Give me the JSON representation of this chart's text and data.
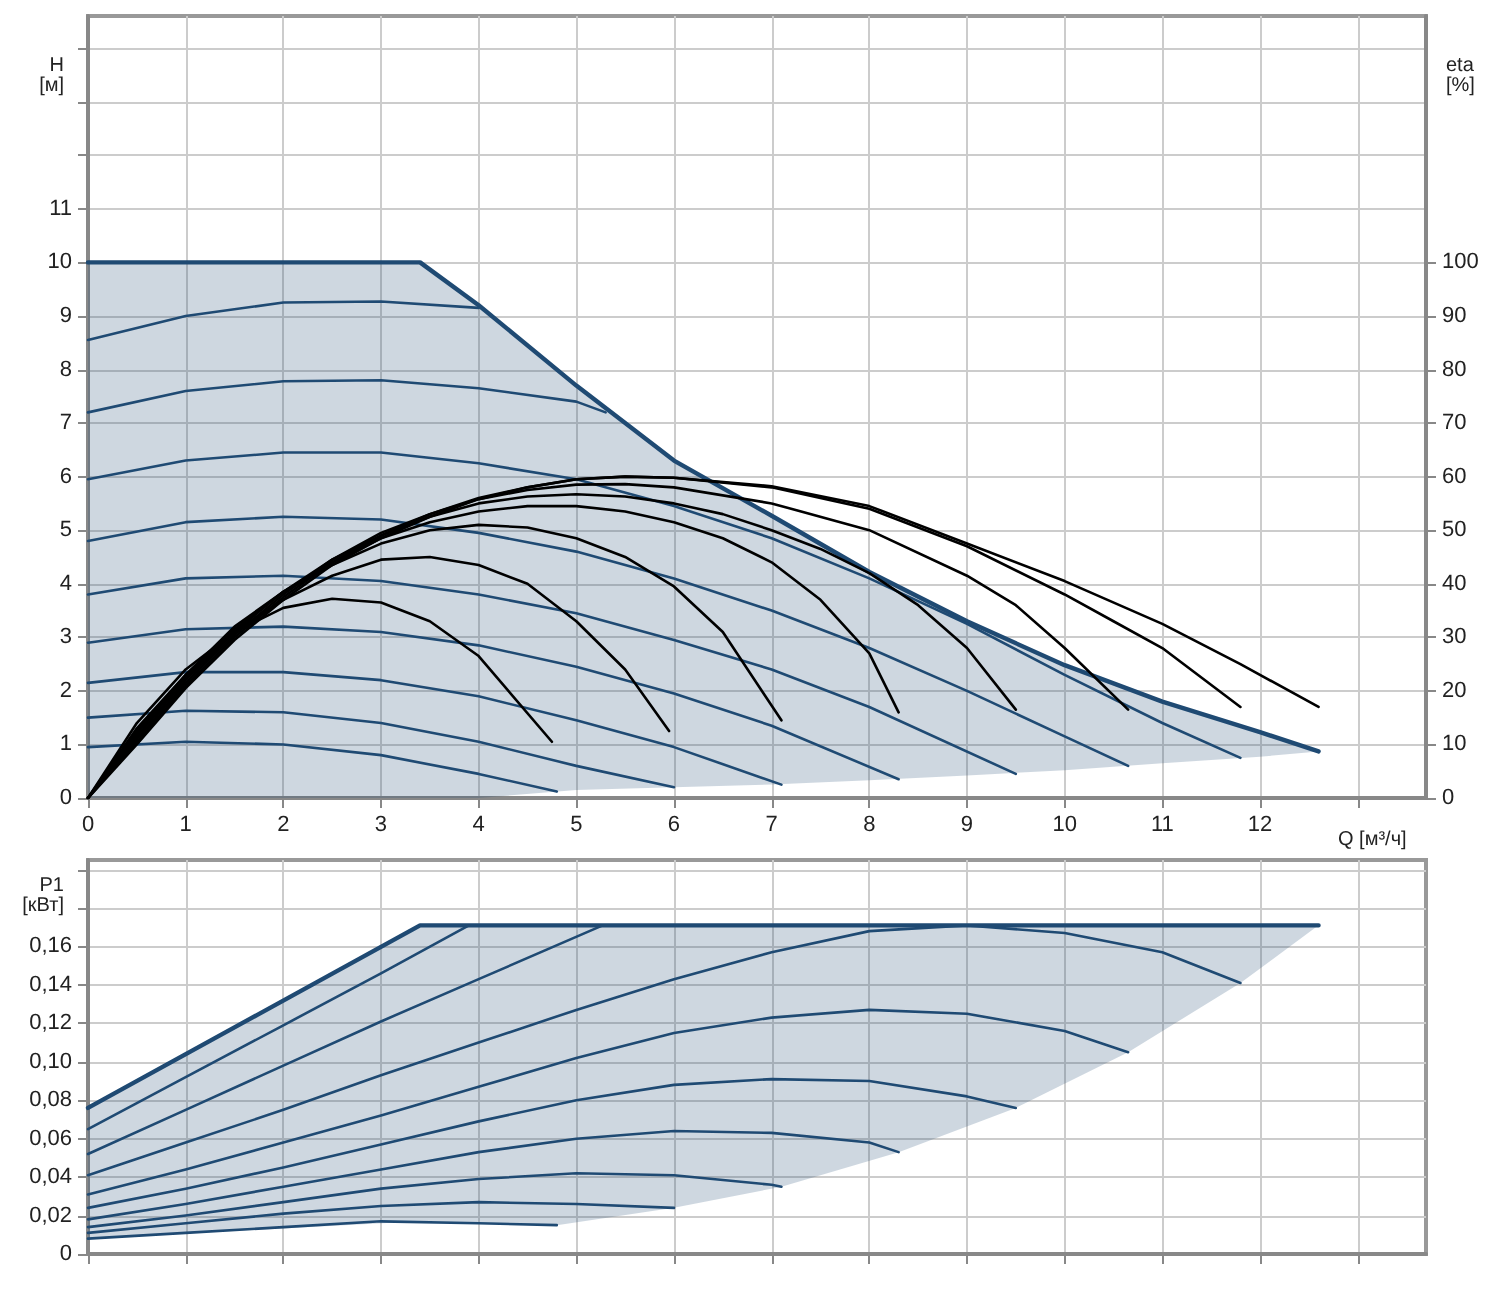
{
  "chart_data": [
    {
      "type": "line",
      "xlabel": "Q [м³/ч]",
      "ylabel": "H [м]",
      "y2label": "eta [%]",
      "grid": true,
      "marker": "none",
      "line_style": "solid",
      "xlim": [
        0,
        13.7
      ],
      "xticks": [
        0,
        1,
        2,
        3,
        4,
        5,
        6,
        7,
        8,
        9,
        10,
        11,
        12,
        {
          "value": 13,
          "label": null
        }
      ],
      "ylim": [
        0,
        14.6
      ],
      "yticks": [
        0,
        1,
        2,
        3,
        4,
        5,
        6,
        7,
        8,
        9,
        10,
        11,
        {
          "value": 12,
          "label": null
        },
        {
          "value": 13,
          "label": null
        },
        {
          "value": 14,
          "label": null
        }
      ],
      "y2lim": [
        0,
        146
      ],
      "y2ticks": [
        0,
        10,
        20,
        30,
        40,
        50,
        60,
        70,
        80,
        90,
        100
      ],
      "series": [
        {
          "color": "#1f4a73",
          "x": [
            0,
            1,
            2,
            3,
            3.4,
            4,
            5,
            6,
            7,
            8,
            9,
            10,
            11,
            12,
            12.6
          ],
          "values": [
            10,
            10,
            10,
            10,
            10,
            9.2,
            7.7,
            6.3,
            5.27,
            4.22,
            3.3,
            2.48,
            1.8,
            1.23,
            0.87
          ],
          "upper": [
            10,
            10,
            10,
            10,
            10,
            9.2,
            7.7,
            6.3,
            5.27,
            4.22,
            3.3,
            2.48,
            1.8,
            1.23,
            0.87
          ],
          "lower": [
            0,
            0,
            0,
            0,
            0,
            0,
            0.15,
            0.2,
            0.25,
            0.33,
            0.42,
            0.52,
            0.65,
            0.77,
            0.87
          ]
        },
        {
          "color": "#1f4a73",
          "x": [
            0,
            1,
            2,
            3,
            4
          ],
          "values": [
            8.55,
            9.0,
            9.25,
            9.27,
            9.15
          ]
        },
        {
          "color": "#1f4a73",
          "x": [
            0,
            1,
            2,
            3,
            4,
            5,
            5.3
          ],
          "values": [
            7.2,
            7.6,
            7.78,
            7.8,
            7.65,
            7.4,
            7.2
          ]
        },
        {
          "color": "#1f4a73",
          "x": [
            0,
            1,
            2,
            3,
            4,
            5,
            6,
            7,
            8,
            9,
            10,
            11,
            11.8
          ],
          "values": [
            5.95,
            6.3,
            6.45,
            6.45,
            6.25,
            5.95,
            5.45,
            4.85,
            4.1,
            3.25,
            2.3,
            1.4,
            0.75
          ]
        },
        {
          "color": "#1f4a73",
          "x": [
            0,
            1,
            2,
            3,
            4,
            5,
            6,
            7,
            8,
            9,
            10,
            10.65
          ],
          "values": [
            4.8,
            5.15,
            5.25,
            5.2,
            4.95,
            4.6,
            4.1,
            3.5,
            2.8,
            2.0,
            1.15,
            0.6
          ]
        },
        {
          "color": "#1f4a73",
          "x": [
            0,
            1,
            2,
            3,
            4,
            5,
            6,
            7,
            8,
            9.5
          ],
          "values": [
            3.8,
            4.1,
            4.15,
            4.05,
            3.8,
            3.45,
            2.95,
            2.4,
            1.7,
            0.45
          ]
        },
        {
          "color": "#1f4a73",
          "x": [
            0,
            1,
            2,
            3,
            4,
            5,
            6,
            7,
            8.3
          ],
          "values": [
            2.9,
            3.15,
            3.2,
            3.1,
            2.85,
            2.45,
            1.95,
            1.35,
            0.35
          ]
        },
        {
          "color": "#1f4a73",
          "x": [
            0,
            1,
            2,
            3,
            4,
            5,
            6,
            7.1
          ],
          "values": [
            2.15,
            2.35,
            2.35,
            2.2,
            1.9,
            1.45,
            0.95,
            0.25
          ]
        },
        {
          "color": "#1f4a73",
          "x": [
            0,
            1,
            2,
            3,
            4,
            5,
            6
          ],
          "values": [
            1.5,
            1.63,
            1.6,
            1.4,
            1.05,
            0.6,
            0.2
          ]
        },
        {
          "color": "#1f4a73",
          "x": [
            0,
            1,
            2,
            3,
            4,
            4.8
          ],
          "values": [
            0.95,
            1.05,
            1.0,
            0.8,
            0.45,
            0.12
          ]
        },
        {
          "color": "#000000",
          "axis": "y2",
          "x": [
            0,
            0.5,
            1,
            1.5,
            2,
            2.5,
            3,
            3.5,
            4,
            4.75
          ],
          "values": [
            0,
            14,
            24,
            31,
            35.5,
            37.2,
            36.5,
            33,
            26.5,
            10.5
          ]
        },
        {
          "color": "#000000",
          "axis": "y2",
          "x": [
            0,
            0.5,
            1,
            1.5,
            2,
            2.5,
            3,
            3.5,
            4,
            4.5,
            5,
            5.5,
            5.95
          ],
          "values": [
            0,
            13,
            23,
            31,
            37,
            41.5,
            44.5,
            45,
            43.5,
            40,
            33,
            24,
            12.5
          ]
        },
        {
          "color": "#000000",
          "axis": "y2",
          "x": [
            0,
            0.5,
            1,
            1.5,
            2,
            2.5,
            3,
            3.5,
            4,
            4.5,
            5,
            5.5,
            6,
            6.5,
            7.1
          ],
          "values": [
            0,
            12.5,
            23,
            32,
            38.5,
            43.5,
            47.5,
            50,
            51,
            50.5,
            48.5,
            45,
            39.5,
            31,
            14.5
          ]
        },
        {
          "color": "#000000",
          "axis": "y2",
          "x": [
            0,
            0.5,
            1,
            1.5,
            2,
            2.5,
            3,
            3.5,
            4,
            4.5,
            5,
            5.5,
            6,
            6.5,
            7,
            7.5,
            8,
            8.3
          ],
          "values": [
            0,
            12,
            22.5,
            31.5,
            38.5,
            44,
            48.5,
            51.5,
            53.5,
            54.5,
            54.5,
            53.5,
            51.5,
            48.5,
            44,
            37,
            27,
            16
          ]
        },
        {
          "color": "#000000",
          "axis": "y2",
          "x": [
            0,
            0.5,
            1,
            1.5,
            2,
            2.5,
            3,
            3.5,
            4,
            4.5,
            5,
            5.5,
            6,
            6.5,
            7,
            7.5,
            8,
            8.5,
            9,
            9.5
          ],
          "values": [
            0,
            11.5,
            22,
            31,
            38.5,
            44.5,
            49,
            52.5,
            55,
            56.3,
            56.7,
            56.3,
            55,
            53,
            50,
            46.5,
            42,
            36,
            28,
            16.5
          ]
        },
        {
          "color": "#000000",
          "axis": "y2",
          "x": [
            0,
            0.5,
            1,
            1.5,
            2,
            2.5,
            3,
            3.5,
            4,
            4.5,
            5,
            5.5,
            6,
            7,
            8,
            9,
            9.5,
            10,
            10.65
          ],
          "values": [
            0,
            11,
            21.5,
            30.5,
            38,
            44.5,
            49.5,
            53,
            55.8,
            57.5,
            58.5,
            58.6,
            58,
            55,
            50,
            41.5,
            36,
            28,
            16.5
          ]
        },
        {
          "color": "#000000",
          "axis": "y2",
          "x": [
            0,
            0.5,
            1,
            1.5,
            2,
            2.5,
            3,
            3.5,
            4,
            4.5,
            5,
            5.5,
            6,
            7,
            8,
            9,
            10,
            10.5,
            11,
            11.8
          ],
          "values": [
            0,
            10.5,
            21,
            30,
            37.5,
            44,
            49,
            53,
            56,
            58,
            59.5,
            60,
            59.8,
            58,
            54,
            47,
            38,
            33,
            28,
            17
          ]
        },
        {
          "color": "#000000",
          "axis": "y2",
          "x": [
            0,
            0.5,
            1,
            1.5,
            2,
            2.5,
            3,
            3.5,
            4,
            4.5,
            5,
            5.5,
            6,
            7,
            8,
            9,
            10,
            11,
            11.8,
            12.6
          ],
          "values": [
            0,
            10,
            20.5,
            29.5,
            37,
            43.5,
            48.5,
            52.5,
            55.8,
            58,
            59.5,
            60,
            59.8,
            58.2,
            54.5,
            47.5,
            40.5,
            32.5,
            25,
            17
          ]
        }
      ]
    },
    {
      "type": "line",
      "ylabel": "P1 [кВт]",
      "grid": true,
      "marker": "none",
      "line_style": "solid",
      "tick_labels": "y",
      "xlim": [
        0,
        13.7
      ],
      "xticks": [
        0,
        1,
        2,
        3,
        4,
        5,
        6,
        7,
        8,
        9,
        10,
        11,
        12,
        13
      ],
      "ylim": [
        0,
        0.205
      ],
      "yticks": [
        0,
        {
          "value": 0.02,
          "label": "0,02"
        },
        {
          "value": 0.04,
          "label": "0,04"
        },
        {
          "value": 0.06,
          "label": "0,06"
        },
        {
          "value": 0.08,
          "label": "0,08"
        },
        {
          "value": 0.1,
          "label": "0,10"
        },
        {
          "value": 0.12,
          "label": "0,12"
        },
        {
          "value": 0.14,
          "label": "0,14"
        },
        {
          "value": 0.16,
          "label": "0,16"
        },
        {
          "value": 0.18,
          "label": null
        },
        {
          "value": 0.2,
          "label": null
        }
      ],
      "series": [
        {
          "color": "#1f4a73",
          "x": [
            0,
            3.4,
            4.8,
            6,
            7.1,
            8.3,
            9.5,
            10.65,
            11.8,
            12.6
          ],
          "values": [
            0.076,
            0.171,
            0.171,
            0.171,
            0.171,
            0.171,
            0.171,
            0.171,
            0.171,
            0.171
          ],
          "upper": [
            0.076,
            0.171,
            0.171,
            0.171,
            0.171,
            0.171,
            0.171,
            0.171,
            0.171,
            0.171
          ],
          "lower": [
            0.008,
            0.017,
            0.015,
            0.024,
            0.035,
            0.053,
            0.076,
            0.105,
            0.141,
            0.171
          ]
        },
        {
          "color": "#1f4a73",
          "x": [
            0,
            1,
            2,
            3,
            3.9
          ],
          "values": [
            0.065,
            0.092,
            0.119,
            0.146,
            0.171
          ]
        },
        {
          "color": "#1f4a73",
          "x": [
            0,
            1,
            2,
            3,
            4,
            5.27
          ],
          "values": [
            0.052,
            0.075,
            0.098,
            0.121,
            0.143,
            0.171
          ]
        },
        {
          "color": "#1f4a73",
          "x": [
            0,
            1,
            2,
            3,
            4,
            5,
            6,
            7,
            8,
            9,
            10,
            11,
            11.8
          ],
          "values": [
            0.041,
            0.058,
            0.075,
            0.093,
            0.11,
            0.127,
            0.143,
            0.157,
            0.168,
            0.171,
            0.167,
            0.157,
            0.141
          ]
        },
        {
          "color": "#1f4a73",
          "x": [
            0,
            1,
            2,
            3,
            4,
            5,
            6,
            7,
            8,
            9,
            10,
            10.65
          ],
          "values": [
            0.031,
            0.044,
            0.058,
            0.072,
            0.087,
            0.102,
            0.115,
            0.123,
            0.127,
            0.125,
            0.116,
            0.105
          ]
        },
        {
          "color": "#1f4a73",
          "x": [
            0,
            1,
            2,
            3,
            4,
            5,
            6,
            7,
            8,
            9,
            9.5
          ],
          "values": [
            0.024,
            0.034,
            0.045,
            0.057,
            0.069,
            0.08,
            0.088,
            0.091,
            0.09,
            0.082,
            0.076
          ]
        },
        {
          "color": "#1f4a73",
          "x": [
            0,
            1,
            2,
            3,
            4,
            5,
            6,
            7,
            8,
            8.3
          ],
          "values": [
            0.018,
            0.026,
            0.035,
            0.044,
            0.053,
            0.06,
            0.064,
            0.063,
            0.058,
            0.053
          ]
        },
        {
          "color": "#1f4a73",
          "x": [
            0,
            1,
            2,
            3,
            4,
            5,
            6,
            7,
            7.1
          ],
          "values": [
            0.014,
            0.02,
            0.027,
            0.034,
            0.039,
            0.042,
            0.041,
            0.036,
            0.035
          ]
        },
        {
          "color": "#1f4a73",
          "x": [
            0,
            1,
            2,
            3,
            4,
            5,
            6
          ],
          "values": [
            0.011,
            0.016,
            0.021,
            0.025,
            0.027,
            0.026,
            0.024
          ]
        },
        {
          "color": "#1f4a73",
          "x": [
            0,
            1,
            2,
            3,
            4,
            4.8
          ],
          "values": [
            0.008,
            0.011,
            0.014,
            0.017,
            0.016,
            0.015
          ]
        }
      ]
    }
  ]
}
